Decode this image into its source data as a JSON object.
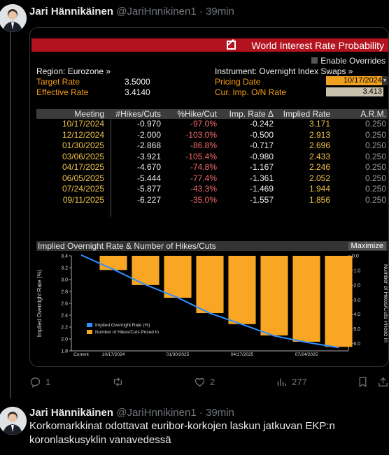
{
  "tweet1": {
    "name": "Jari Hännikäinen",
    "handle": "@JariHnnikinen1",
    "dot": "·",
    "time": "39min",
    "actions": {
      "replies": "1",
      "likes": "2",
      "views": "277"
    }
  },
  "terminal": {
    "title": "World Interest Rate Probability",
    "enable_overrides": "Enable Overrides",
    "region_label": "Region: Eurozone »",
    "instrument_label": "Instrument: Overnight Index Swaps »",
    "target_rate_label": "Target Rate",
    "target_rate_value": "3.5000",
    "effective_rate_label": "Effective Rate",
    "effective_rate_value": "3.4140",
    "pricing_date_label": "Pricing Date",
    "pricing_date_value": "10/17/2024",
    "cur_imp_label": "Cur. Imp. O/N Rate",
    "cur_imp_value": "3.413",
    "table": {
      "headers": [
        "Meeting",
        "#Hikes/Cuts",
        "%Hike/Cut",
        "Imp. Rate Δ",
        "Implied Rate",
        "A.R.M."
      ],
      "rows": [
        [
          "10/17/2024",
          "-0.970",
          "-97.0%",
          "-0.242",
          "3.171",
          "0.250"
        ],
        [
          "12/12/2024",
          "-2.000",
          "-103.0%",
          "-0.500",
          "2.913",
          "0.250"
        ],
        [
          "01/30/2025",
          "-2.868",
          "-86.8%",
          "-0.717",
          "2.696",
          "0.250"
        ],
        [
          "03/06/2025",
          "-3.921",
          "-105.4%",
          "-0.980",
          "2.433",
          "0.250"
        ],
        [
          "04/17/2025",
          "-4.670",
          "-74.8%",
          "-1.167",
          "2.246",
          "0.250"
        ],
        [
          "06/05/2025",
          "-5.444",
          "-77.4%",
          "-1.361",
          "2.052",
          "0.250"
        ],
        [
          "07/24/2025",
          "-5.877",
          "-43.3%",
          "-1.469",
          "1.944",
          "0.250"
        ],
        [
          "09/11/2025",
          "-6.227",
          "-35.0%",
          "-1.557",
          "1.856",
          "0.250"
        ]
      ]
    },
    "chart_title": "Implied Overnight Rate & Number of Hikes/Cuts",
    "maximize_label": "Maximize"
  },
  "chart_data": {
    "type": "bar",
    "title": "Implied Overnight Rate & Number of Hikes/Cuts",
    "ylabel": "Implied Overnight Rate (%)",
    "y2label": "Number of Hikes/Cuts Priced In",
    "ylim": [
      1.8,
      3.4
    ],
    "y2lim": [
      -6.5,
      0
    ],
    "yticks": [
      "3.4",
      "3.2",
      "3.0",
      "2.8",
      "2.6",
      "2.4",
      "2.2",
      "2.0",
      "1.8"
    ],
    "y2ticks": [
      "0.0",
      "-1.0",
      "-2.0",
      "-3.0",
      "-4.0",
      "-5.0",
      "-6.0"
    ],
    "xticks": [
      "Current",
      "10/17/2024",
      "01/30/2025",
      "04/17/2025",
      "07/24/2025"
    ],
    "legend": [
      "Implied Overnight Rate (%)",
      "Number of Hikes/Cuts Priced In"
    ],
    "legend_position": "bottom-left",
    "colors": {
      "line": "#2f8fff",
      "bars": "#f8a623"
    },
    "series": [
      {
        "name": "Implied Overnight Rate (%)",
        "values": [
          3.413,
          3.171,
          2.913,
          2.696,
          2.433,
          2.246,
          2.052,
          1.944,
          1.856
        ]
      },
      {
        "name": "Number of Hikes/Cuts Priced In",
        "values": [
          -0.97,
          -2.0,
          -2.868,
          -3.921,
          -4.67,
          -5.444,
          -5.877,
          -6.227
        ]
      }
    ]
  },
  "tweet2": {
    "name": "Jari Hännikäinen",
    "handle": "@JariHnnikinen1",
    "dot": "·",
    "time": "39min",
    "text": "Korkomarkkinat odottavat euribor-korkojen laskun jatkuvan EKP:n koronlaskusyklin vanavedessä"
  }
}
